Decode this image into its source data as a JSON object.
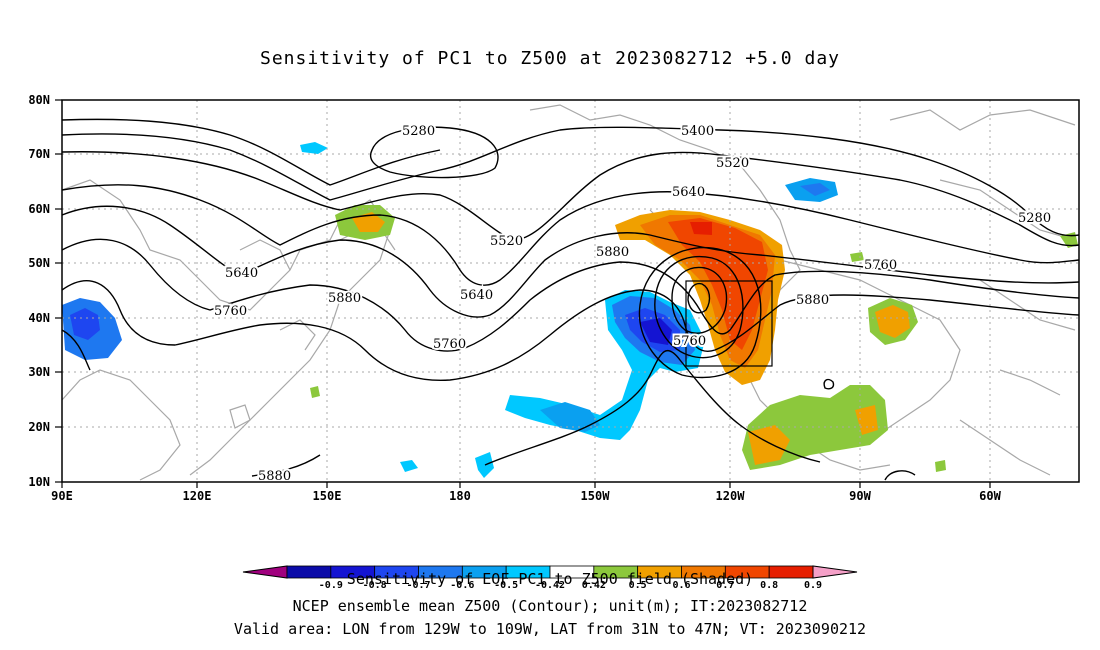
{
  "title": "Sensitivity of PC1 to Z500 at 2023082712 +5.0 day",
  "lat_labels": [
    "80N",
    "70N",
    "60N",
    "50N",
    "40N",
    "30N",
    "20N",
    "10N"
  ],
  "lon_labels": [
    "90E",
    "120E",
    "150E",
    "180",
    "150W",
    "120W",
    "90W",
    "60W"
  ],
  "contour_labels": {
    "c5280a": "5280",
    "c5400": "5400",
    "c5520a": "5520",
    "c5640a": "5640",
    "c5280b": "5280",
    "c5520b": "5520",
    "c5880a": "5880",
    "c5640b": "5640",
    "c5760a": "5760",
    "c5640c": "5640",
    "c5760b": "5760",
    "c5880b": "5880",
    "c5760c": "5760",
    "c5760d": "5760",
    "c5880c": "5880",
    "c5880d": "5880"
  },
  "colorbar": {
    "labels": [
      "-0.9",
      "-0.8",
      "-0.7",
      "-0.6",
      "-0.5",
      "-0.42",
      "0.42",
      "0.5",
      "0.6",
      "0.7",
      "0.8",
      "0.9"
    ],
    "colors": [
      "#a0007e",
      "#0b0ba8",
      "#1414d2",
      "#1e46f0",
      "#1e78f0",
      "#0aa0f0",
      "#00c8ff",
      "#ffffff",
      "#8cc83c",
      "#f0a000",
      "#f07800",
      "#f04600",
      "#e61e00",
      "#f5a0c8"
    ]
  },
  "captions": {
    "line1": "Sensitivity of EOF PC1 to Z500 field (Shaded)",
    "line2": "NCEP ensemble mean Z500 (Contour); unit(m); IT:2023082712",
    "line3": "Valid area: LON from 129W to 109W, LAT from 31N to 47N; VT: 2023090212"
  }
}
